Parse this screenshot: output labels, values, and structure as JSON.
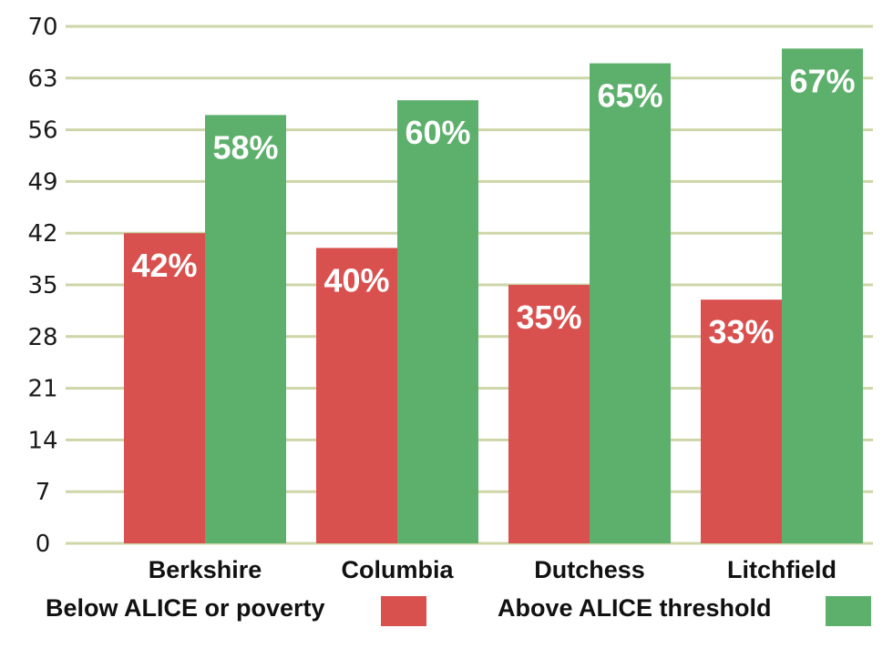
{
  "colors": {
    "below": "#d9514f",
    "above": "#5daf6c",
    "grid": "#cdd6a8"
  },
  "chart_data": {
    "type": "bar",
    "categories": [
      "Berkshire",
      "Columbia",
      "Dutchess",
      "Litchfield"
    ],
    "series": [
      {
        "name": "Below ALICE or poverty",
        "values": [
          42,
          40,
          35,
          33
        ],
        "labels": [
          "42%",
          "40%",
          "35%",
          "33%"
        ]
      },
      {
        "name": "Above ALICE threshold",
        "values": [
          58,
          60,
          65,
          67
        ],
        "labels": [
          "58%",
          "60%",
          "65%",
          "67%"
        ]
      }
    ],
    "yticks": [
      "0",
      "7",
      "14",
      "21",
      "28",
      "35",
      "42",
      "49",
      "56",
      "63",
      "70"
    ],
    "ylim": [
      0,
      70
    ],
    "grid": true,
    "legend": "bottom"
  }
}
